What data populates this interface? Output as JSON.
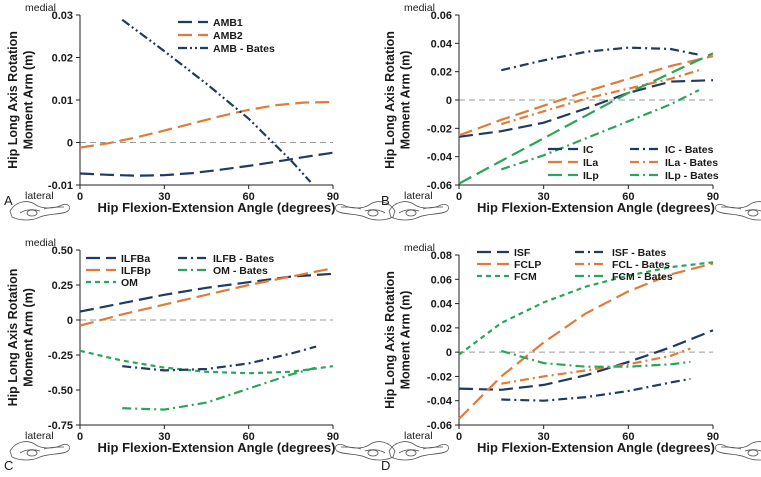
{
  "chart_data": [
    {
      "type": "line",
      "panel": "A",
      "ylabel": "Hip Long Axis Rotation Moment Arm (m)",
      "xlabel": "Hip Flexion-Extension Angle (degrees)",
      "top_label": "medial",
      "bottom_label": "lateral",
      "xlim": [
        0,
        90
      ],
      "ylim": [
        -0.01,
        0.03
      ],
      "xticks": [
        0,
        30,
        60,
        90
      ],
      "yticks": [
        -0.01,
        0,
        0.01,
        0.02,
        0.03
      ],
      "ytick_labels": [
        "-0.01",
        "0",
        "0.01",
        "0.02",
        "0.03"
      ],
      "legend_position": "top-center",
      "series": [
        {
          "name": "AMB1",
          "color": "#1f3a63",
          "dash": "long",
          "x": [
            0,
            10,
            20,
            30,
            40,
            50,
            60,
            70,
            80,
            90
          ],
          "y": [
            -0.0073,
            -0.0076,
            -0.0078,
            -0.0077,
            -0.0072,
            -0.0064,
            -0.0055,
            -0.0045,
            -0.0034,
            -0.0024
          ]
        },
        {
          "name": "AMB2",
          "color": "#e07b39",
          "dash": "long",
          "x": [
            0,
            10,
            20,
            30,
            40,
            50,
            60,
            70,
            80,
            90
          ],
          "y": [
            -0.0012,
            -0.0002,
            0.0012,
            0.0028,
            0.0045,
            0.0062,
            0.0077,
            0.0088,
            0.0094,
            0.0095
          ]
        },
        {
          "name": "AMB - Bates",
          "color": "#1f3a63",
          "dash": "dashdotdot",
          "x": [
            15,
            30,
            45,
            60,
            75,
            82
          ],
          "y": [
            0.0289,
            0.0215,
            0.0138,
            0.0056,
            -0.0042,
            -0.0093
          ]
        }
      ]
    },
    {
      "type": "line",
      "panel": "B",
      "ylabel": "Hip Long Axis Rotation Moment Arm (m)",
      "xlabel": "Hip Flexion-Extension Angle (degrees)",
      "top_label": "medial",
      "bottom_label": "lateral",
      "xlim": [
        0,
        90
      ],
      "ylim": [
        -0.06,
        0.06
      ],
      "xticks": [
        0,
        30,
        60,
        90
      ],
      "yticks": [
        -0.06,
        -0.04,
        -0.02,
        0,
        0.02,
        0.04,
        0.06
      ],
      "ytick_labels": [
        "-0.06",
        "-0.04",
        "-0.02",
        "0",
        "0.02",
        "0.04",
        "0.06"
      ],
      "legend_position": "bottom-right",
      "series": [
        {
          "name": "IC",
          "color": "#1f3a63",
          "dash": "long",
          "x": [
            0,
            15,
            30,
            45,
            60,
            75,
            90
          ],
          "y": [
            -0.026,
            -0.022,
            -0.016,
            -0.006,
            0.005,
            0.013,
            0.014
          ]
        },
        {
          "name": "IC - Bates",
          "color": "#1f3a63",
          "dash": "dashdot",
          "x": [
            15,
            30,
            45,
            60,
            75,
            85
          ],
          "y": [
            0.021,
            0.028,
            0.034,
            0.037,
            0.036,
            0.032
          ]
        },
        {
          "name": "ILa",
          "color": "#e07b39",
          "dash": "long",
          "x": [
            0,
            15,
            30,
            45,
            60,
            75,
            90
          ],
          "y": [
            -0.025,
            -0.014,
            -0.004,
            0.006,
            0.015,
            0.024,
            0.031
          ]
        },
        {
          "name": "ILa - Bates",
          "color": "#e07b39",
          "dash": "dashdot",
          "x": [
            15,
            30,
            45,
            60,
            75,
            85
          ],
          "y": [
            -0.017,
            -0.008,
            0.001,
            0.008,
            0.015,
            0.021
          ]
        },
        {
          "name": "ILp",
          "color": "#2aa55a",
          "dash": "long",
          "x": [
            0,
            15,
            30,
            45,
            60,
            75,
            90
          ],
          "y": [
            -0.059,
            -0.043,
            -0.027,
            -0.011,
            0.005,
            0.019,
            0.033
          ]
        },
        {
          "name": "ILp - Bates",
          "color": "#2aa55a",
          "dash": "dashdot",
          "x": [
            15,
            30,
            45,
            60,
            75,
            85
          ],
          "y": [
            -0.049,
            -0.039,
            -0.027,
            -0.015,
            -0.003,
            0.007
          ]
        }
      ]
    },
    {
      "type": "line",
      "panel": "C",
      "ylabel": "Hip Long Axis Rotation Moment Arm (m)",
      "xlabel": "Hip Flexion-Extension Angle (degrees)",
      "top_label": "medial",
      "bottom_label": "lateral",
      "xlim": [
        0,
        90
      ],
      "ylim": [
        -0.75,
        0.5
      ],
      "xticks": [
        0,
        30,
        60,
        90
      ],
      "yticks": [
        -0.75,
        -0.5,
        -0.25,
        0,
        0.25,
        0.5
      ],
      "ytick_labels": [
        "-0.75",
        "-0.50",
        "-0.25",
        "0",
        "0.25",
        "0.50"
      ],
      "legend_position": "top-left",
      "series": [
        {
          "name": "ILFBa",
          "color": "#1f3a63",
          "dash": "long",
          "x": [
            0,
            15,
            30,
            45,
            60,
            75,
            90
          ],
          "y": [
            0.06,
            0.12,
            0.18,
            0.23,
            0.27,
            0.31,
            0.33
          ]
        },
        {
          "name": "ILFBp",
          "color": "#e07b39",
          "dash": "long",
          "x": [
            0,
            15,
            30,
            45,
            60,
            75,
            90
          ],
          "y": [
            -0.04,
            0.04,
            0.11,
            0.18,
            0.25,
            0.31,
            0.37
          ]
        },
        {
          "name": "OM",
          "color": "#2aa55a",
          "dash": "short",
          "x": [
            0,
            15,
            30,
            45,
            60,
            75,
            90
          ],
          "y": [
            -0.22,
            -0.29,
            -0.34,
            -0.37,
            -0.38,
            -0.37,
            -0.33
          ]
        },
        {
          "name": "ILFB - Bates",
          "color": "#1f3a63",
          "dash": "dashdot",
          "x": [
            15,
            30,
            45,
            60,
            75,
            84
          ],
          "y": [
            -0.33,
            -0.36,
            -0.35,
            -0.31,
            -0.24,
            -0.19
          ]
        },
        {
          "name": "OM - Bates",
          "color": "#2aa55a",
          "dash": "dashdot",
          "x": [
            15,
            30,
            45,
            60,
            75,
            84
          ],
          "y": [
            -0.63,
            -0.64,
            -0.59,
            -0.49,
            -0.39,
            -0.34
          ]
        }
      ]
    },
    {
      "type": "line",
      "panel": "D",
      "ylabel": "Hip Long Axis Rotation Moment Arm (m)",
      "xlabel": "Hip Flexion-Extension Angle (degrees)",
      "top_label": "medial",
      "bottom_label": "lateral",
      "xlim": [
        0,
        90
      ],
      "ylim": [
        -0.06,
        0.08
      ],
      "xticks": [
        0,
        30,
        60,
        90
      ],
      "yticks": [
        -0.06,
        -0.04,
        -0.02,
        0,
        0.02,
        0.04,
        0.06,
        0.08
      ],
      "ytick_labels": [
        "-0.06",
        "-0.04",
        "-0.02",
        "0",
        "0.02",
        "0.04",
        "0.06",
        "0.08"
      ],
      "legend_position": "top",
      "series": [
        {
          "name": "ISF",
          "color": "#1f3a63",
          "dash": "long",
          "x": [
            0,
            15,
            30,
            45,
            60,
            75,
            90
          ],
          "y": [
            -0.03,
            -0.031,
            -0.027,
            -0.019,
            -0.008,
            0.004,
            0.018
          ]
        },
        {
          "name": "ISF - Bates",
          "color": "#1f3a63",
          "dash": "dashdot",
          "x": [
            15,
            30,
            45,
            60,
            75,
            82
          ],
          "y": [
            -0.039,
            -0.04,
            -0.037,
            -0.032,
            -0.025,
            -0.022
          ]
        },
        {
          "name": "FCLP",
          "color": "#e07b39",
          "dash": "long",
          "x": [
            0,
            15,
            30,
            45,
            60,
            75,
            90
          ],
          "y": [
            -0.055,
            -0.02,
            0.008,
            0.032,
            0.05,
            0.064,
            0.073
          ]
        },
        {
          "name": "FCL - Bates",
          "color": "#e07b39",
          "dash": "dashdot",
          "x": [
            15,
            30,
            45,
            60,
            75,
            82
          ],
          "y": [
            -0.026,
            -0.02,
            -0.015,
            -0.01,
            -0.003,
            0.003
          ]
        },
        {
          "name": "FCM",
          "color": "#2aa55a",
          "dash": "short",
          "x": [
            0,
            15,
            30,
            45,
            60,
            75,
            90
          ],
          "y": [
            -0.002,
            0.024,
            0.041,
            0.054,
            0.063,
            0.07,
            0.074
          ]
        },
        {
          "name": "FCM - Bates",
          "color": "#2aa55a",
          "dash": "dashdot",
          "x": [
            15,
            30,
            45,
            60,
            75,
            82
          ],
          "y": [
            0.001,
            -0.009,
            -0.012,
            -0.012,
            -0.01,
            -0.008
          ]
        }
      ]
    }
  ]
}
